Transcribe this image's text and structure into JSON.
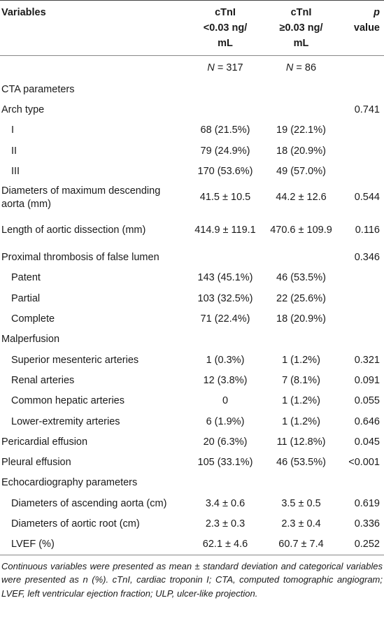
{
  "headers": {
    "variables": "Variables",
    "col1_line1": "cTnI",
    "col1_line2": "<0.03 ng/",
    "col1_line3": "mL",
    "col2_line1": "cTnI",
    "col2_line2": "≥0.03 ng/",
    "col2_line3": "mL",
    "p_line1": "p",
    "p_line2": "value"
  },
  "n_row": {
    "col1": "N = 317",
    "col2": "N = 86"
  },
  "rows": [
    {
      "label": "CTA parameters",
      "indent": false,
      "v1": "",
      "v2": "",
      "p": ""
    },
    {
      "label": "Arch type",
      "indent": false,
      "v1": "",
      "v2": "",
      "p": "0.741"
    },
    {
      "label": "I",
      "indent": true,
      "v1": "68 (21.5%)",
      "v2": "19 (22.1%)",
      "p": ""
    },
    {
      "label": "II",
      "indent": true,
      "v1": "79 (24.9%)",
      "v2": "18 (20.9%)",
      "p": ""
    },
    {
      "label": "III",
      "indent": true,
      "v1": "170 (53.6%)",
      "v2": "49 (57.0%)",
      "p": ""
    },
    {
      "label": "Diameters of maximum descending aorta (mm)",
      "indent": false,
      "v1": "41.5 ± 10.5",
      "v2": "44.2 ± 12.6",
      "p": "0.544",
      "two": true
    },
    {
      "label": "Length of aortic dissection (mm)",
      "indent": false,
      "v1": "414.9 ± 119.1",
      "v2": "470.6 ± 109.9",
      "p": "0.116",
      "two": true
    },
    {
      "label": "Proximal thrombosis of false lumen",
      "indent": false,
      "v1": "",
      "v2": "",
      "p": "0.346"
    },
    {
      "label": "Patent",
      "indent": true,
      "v1": "143 (45.1%)",
      "v2": "46 (53.5%)",
      "p": ""
    },
    {
      "label": "Partial",
      "indent": true,
      "v1": "103 (32.5%)",
      "v2": "22 (25.6%)",
      "p": ""
    },
    {
      "label": "Complete",
      "indent": true,
      "v1": "71 (22.4%)",
      "v2": "18 (20.9%)",
      "p": ""
    },
    {
      "label": "Malperfusion",
      "indent": false,
      "v1": "",
      "v2": "",
      "p": ""
    },
    {
      "label": "Superior mesenteric arteries",
      "indent": true,
      "v1": "1 (0.3%)",
      "v2": "1 (1.2%)",
      "p": "0.321"
    },
    {
      "label": "Renal arteries",
      "indent": true,
      "v1": "12 (3.8%)",
      "v2": "7 (8.1%)",
      "p": "0.091"
    },
    {
      "label": "Common hepatic arteries",
      "indent": true,
      "v1": "0",
      "v2": "1 (1.2%)",
      "p": "0.055"
    },
    {
      "label": "Lower-extremity arteries",
      "indent": true,
      "v1": "6 (1.9%)",
      "v2": "1 (1.2%)",
      "p": "0.646"
    },
    {
      "label": "Pericardial effusion",
      "indent": false,
      "v1": "20 (6.3%)",
      "v2": "11 (12.8%)",
      "p": "0.045"
    },
    {
      "label": "Pleural effusion",
      "indent": false,
      "v1": "105 (33.1%)",
      "v2": "46 (53.5%)",
      "p": "<0.001"
    },
    {
      "label": "Echocardiography parameters",
      "indent": false,
      "v1": "",
      "v2": "",
      "p": ""
    },
    {
      "label": "Diameters of ascending aorta (cm)",
      "indent": true,
      "v1": "3.4 ± 0.6",
      "v2": "3.5 ± 0.5",
      "p": "0.619"
    },
    {
      "label": "Diameters of aortic root (cm)",
      "indent": true,
      "v1": "2.3 ± 0.3",
      "v2": "2.3 ± 0.4",
      "p": "0.336"
    },
    {
      "label": "LVEF (%)",
      "indent": true,
      "v1": "62.1 ± 4.6",
      "v2": "60.7 ± 7.4",
      "p": "0.252"
    }
  ],
  "footnote": "Continuous variables were presented as mean ± standard deviation and categorical variables were presented as n (%). cTnI, cardiac troponin I; CTA, computed tomographic angiogram; LVEF, left ventricular ejection fraction; ULP, ulcer-like projection."
}
